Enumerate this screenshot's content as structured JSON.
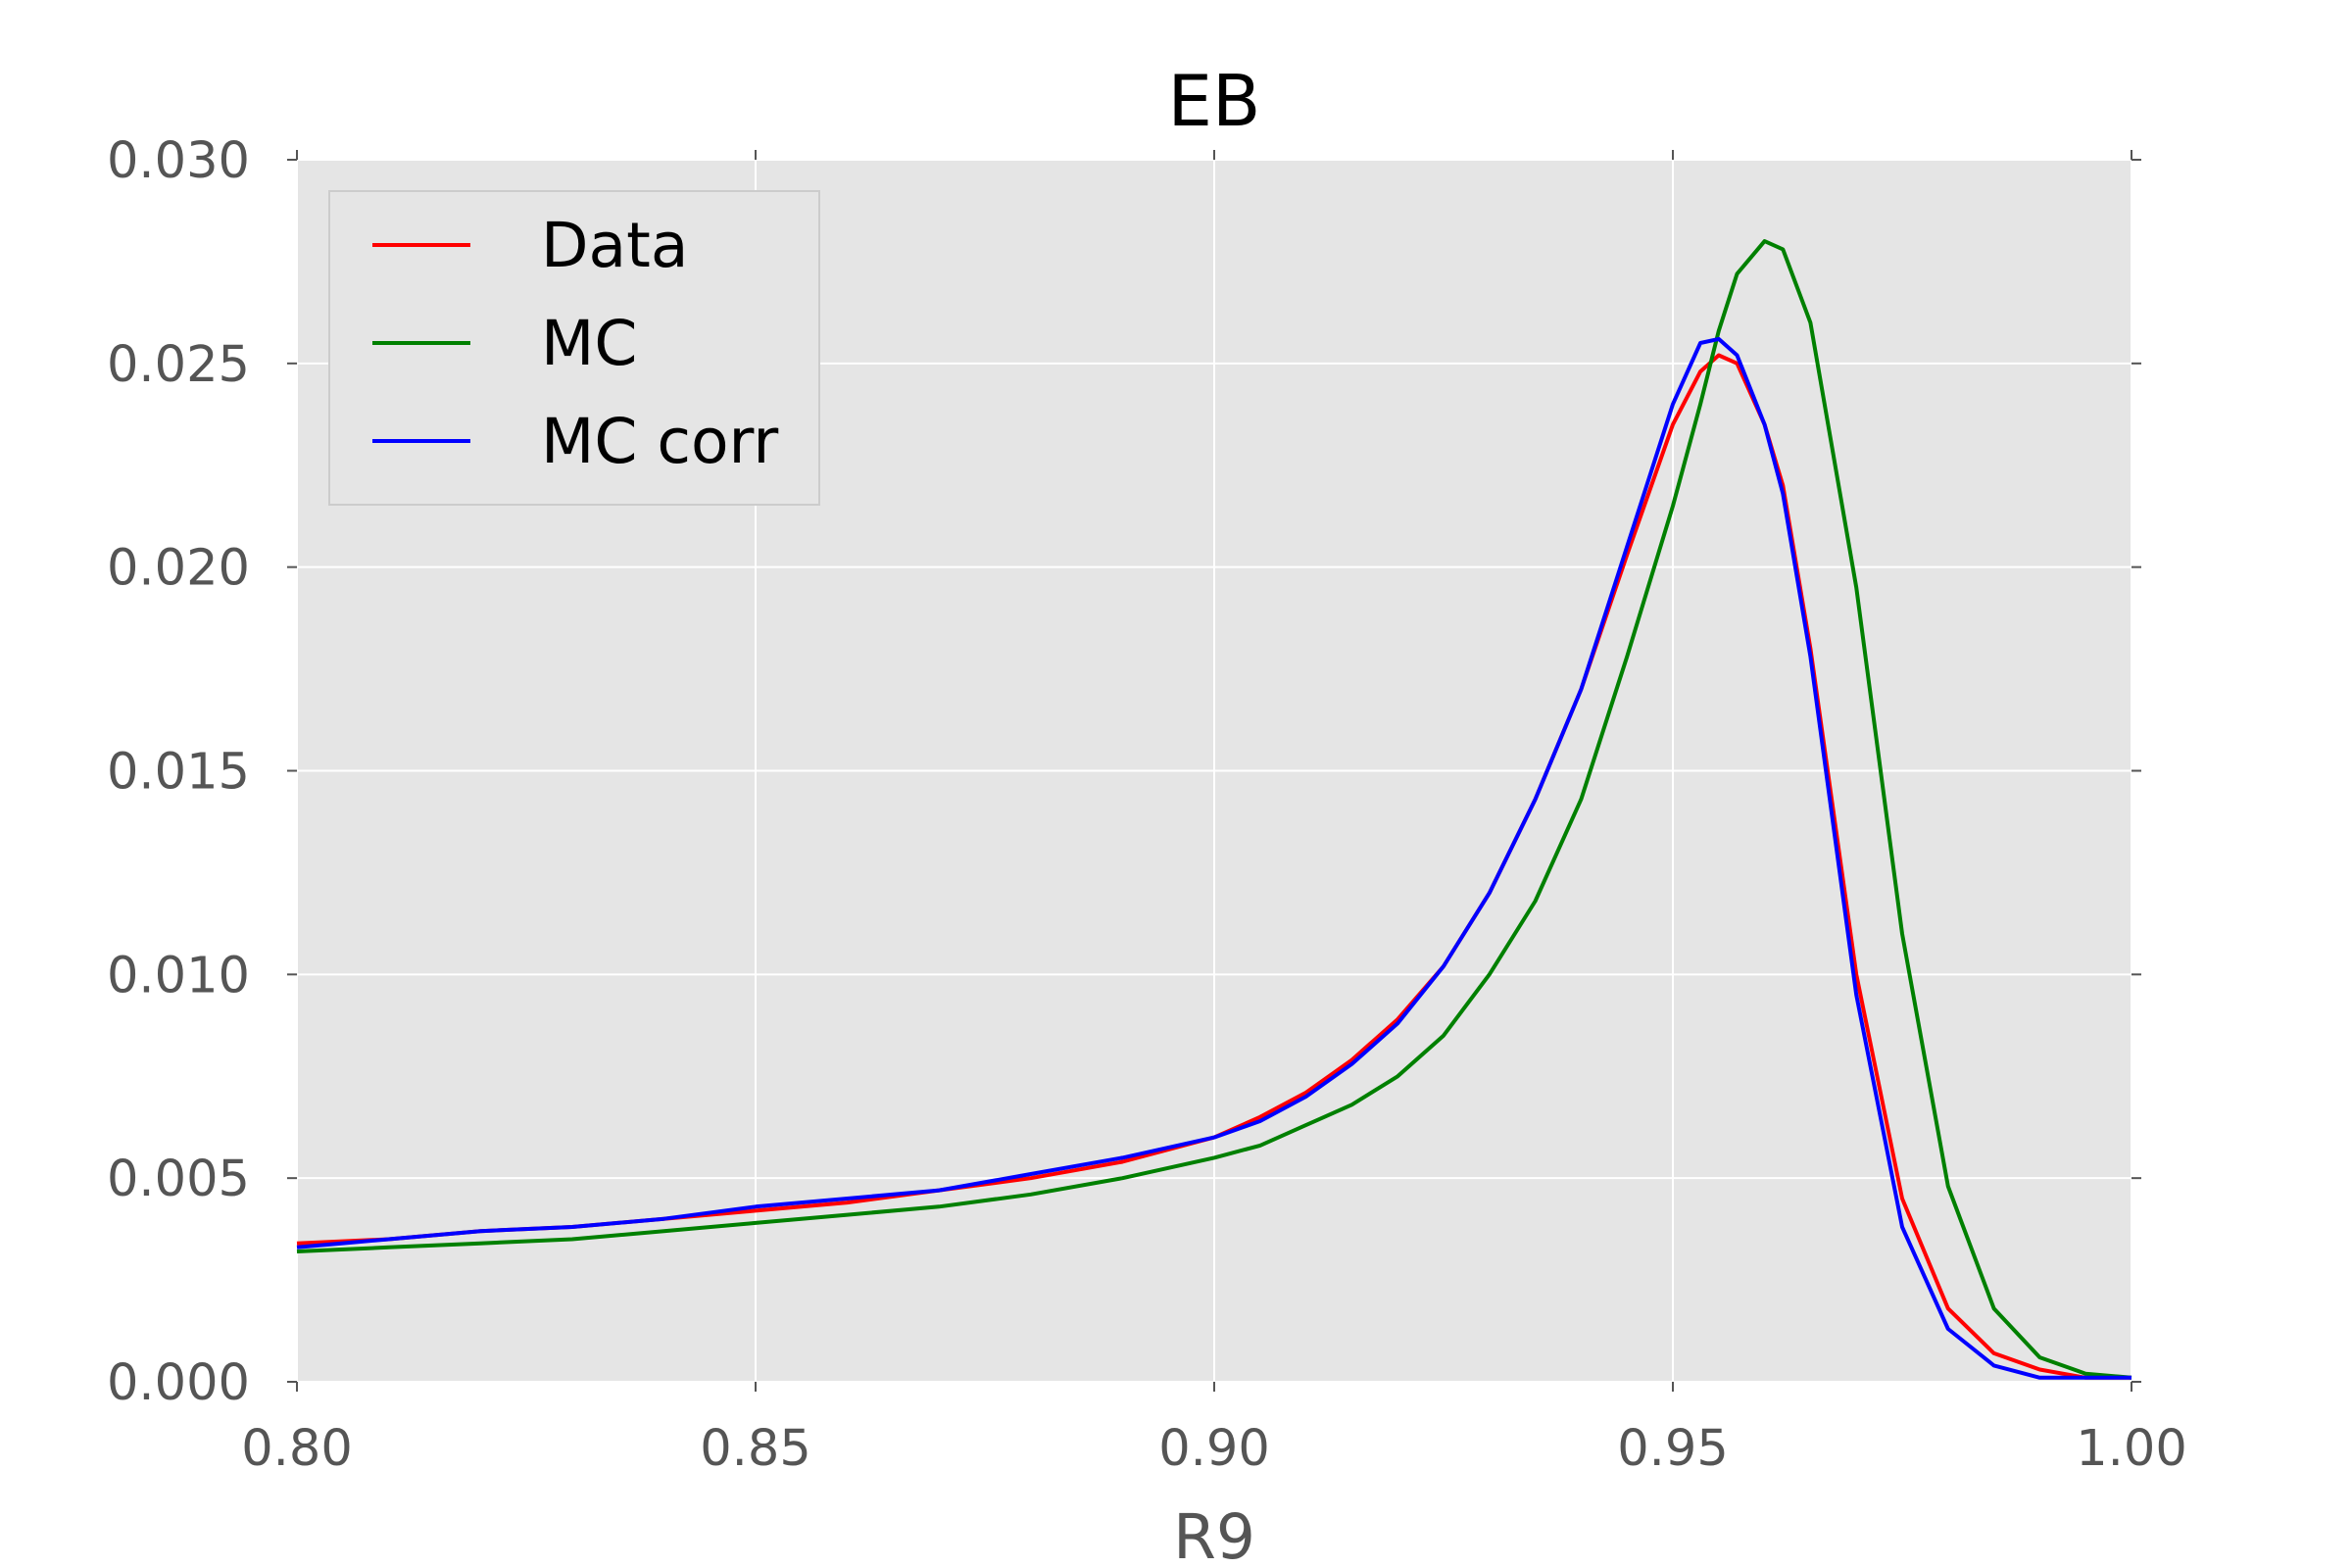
{
  "chart_data": {
    "type": "line",
    "title": "EB",
    "xlabel": "R9",
    "ylabel": "",
    "xlim": [
      0.8,
      1.0
    ],
    "ylim": [
      0.0,
      0.03
    ],
    "x_ticks": [
      "0.80",
      "0.85",
      "0.90",
      "0.95",
      "1.00"
    ],
    "y_ticks": [
      "0.000",
      "0.005",
      "0.010",
      "0.015",
      "0.020",
      "0.025",
      "0.030"
    ],
    "grid": true,
    "legend_position": "top-left",
    "x": [
      0.8,
      0.81,
      0.82,
      0.83,
      0.84,
      0.85,
      0.86,
      0.87,
      0.88,
      0.89,
      0.9,
      0.905,
      0.91,
      0.915,
      0.92,
      0.925,
      0.93,
      0.935,
      0.94,
      0.945,
      0.95,
      0.953,
      0.955,
      0.957,
      0.96,
      0.962,
      0.965,
      0.97,
      0.975,
      0.98,
      0.985,
      0.99,
      0.995,
      1.0
    ],
    "series": [
      {
        "name": "Data",
        "color": "#ff0000",
        "values": [
          0.0034,
          0.0035,
          0.0037,
          0.0038,
          0.004,
          0.0042,
          0.0044,
          0.0047,
          0.005,
          0.0054,
          0.006,
          0.0065,
          0.0071,
          0.0079,
          0.0089,
          0.0102,
          0.012,
          0.0143,
          0.017,
          0.0203,
          0.0235,
          0.0248,
          0.0252,
          0.025,
          0.0235,
          0.022,
          0.018,
          0.01,
          0.0045,
          0.0018,
          0.0007,
          0.0003,
          0.0001,
          0.0001
        ]
      },
      {
        "name": "MC",
        "color": "#008000",
        "values": [
          0.0032,
          0.0033,
          0.0034,
          0.0035,
          0.0037,
          0.0039,
          0.0041,
          0.0043,
          0.0046,
          0.005,
          0.0055,
          0.0058,
          0.0063,
          0.0068,
          0.0075,
          0.0085,
          0.01,
          0.0118,
          0.0143,
          0.0178,
          0.0215,
          0.024,
          0.0258,
          0.0272,
          0.028,
          0.0278,
          0.026,
          0.0195,
          0.011,
          0.0048,
          0.0018,
          0.0006,
          0.0002,
          0.0001
        ]
      },
      {
        "name": "MC corr",
        "color": "#0000ff",
        "values": [
          0.0033,
          0.0035,
          0.0037,
          0.0038,
          0.004,
          0.0043,
          0.0045,
          0.0047,
          0.0051,
          0.0055,
          0.006,
          0.0064,
          0.007,
          0.0078,
          0.0088,
          0.0102,
          0.012,
          0.0143,
          0.017,
          0.0205,
          0.024,
          0.0255,
          0.0256,
          0.0252,
          0.0235,
          0.0218,
          0.0178,
          0.0095,
          0.0038,
          0.0013,
          0.0004,
          0.0001,
          0.0001,
          0.0001
        ]
      }
    ]
  }
}
